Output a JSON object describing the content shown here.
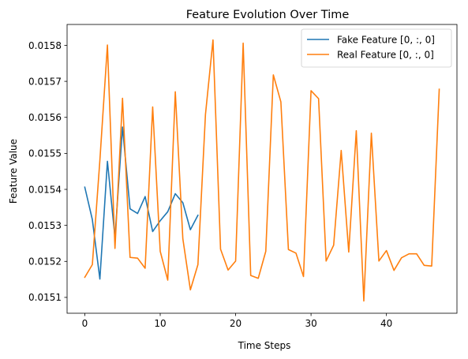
{
  "chart_data": {
    "type": "line",
    "title": "Feature Evolution Over Time",
    "xlabel": "Time Steps",
    "ylabel": "Feature Value",
    "xlim": [
      -2.35,
      49.35
    ],
    "ylim": [
      0.015056,
      0.015858
    ],
    "xticks": [
      0,
      10,
      20,
      30,
      40
    ],
    "yticks": [
      0.0151,
      0.0152,
      0.0153,
      0.0154,
      0.0155,
      0.0156,
      0.0157,
      0.0158
    ],
    "ytick_labels": [
      "0.0151",
      "0.0152",
      "0.0153",
      "0.0154",
      "0.0155",
      "0.0156",
      "0.0157",
      "0.0158"
    ],
    "grid": false,
    "legend_position": "top-right",
    "series": [
      {
        "name": "Fake Feature [0, :, 0]",
        "color": "#1f77b4",
        "x": [
          0,
          1,
          2,
          3,
          4,
          5,
          6,
          7,
          8,
          9,
          10,
          11,
          12,
          13,
          14,
          15
        ],
        "values": [
          0.015406,
          0.015316,
          0.015151,
          0.015478,
          0.015266,
          0.015573,
          0.015346,
          0.015333,
          0.01538,
          0.015283,
          0.015313,
          0.015338,
          0.015388,
          0.015363,
          0.015288,
          0.015328
        ]
      },
      {
        "name": "Real Feature [0, :, 0]",
        "color": "#ff7f0e",
        "x": [
          0,
          1,
          2,
          3,
          4,
          5,
          6,
          7,
          8,
          9,
          10,
          11,
          12,
          13,
          14,
          15,
          16,
          17,
          18,
          19,
          20,
          21,
          22,
          23,
          24,
          25,
          26,
          27,
          28,
          29,
          30,
          31,
          32,
          33,
          34,
          35,
          36,
          37,
          38,
          39,
          40,
          41,
          42,
          43,
          44,
          45,
          46,
          47
        ],
        "values": [
          0.015156,
          0.015191,
          0.015481,
          0.015801,
          0.015236,
          0.015653,
          0.015211,
          0.015209,
          0.015181,
          0.015629,
          0.015228,
          0.015148,
          0.015671,
          0.015263,
          0.015121,
          0.015191,
          0.015608,
          0.015815,
          0.015234,
          0.015176,
          0.015201,
          0.015806,
          0.015161,
          0.015153,
          0.015228,
          0.015718,
          0.015643,
          0.015233,
          0.015223,
          0.015158,
          0.015674,
          0.015652,
          0.015201,
          0.015245,
          0.015508,
          0.015226,
          0.015563,
          0.01509,
          0.015556,
          0.015201,
          0.01523,
          0.015175,
          0.01521,
          0.015221,
          0.015221,
          0.015189,
          0.015187,
          0.015678
        ]
      }
    ]
  }
}
